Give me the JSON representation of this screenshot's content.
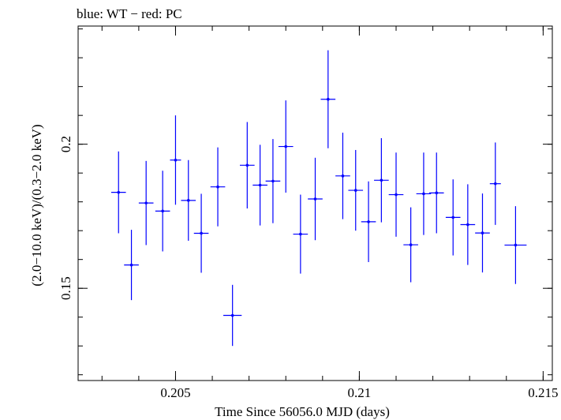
{
  "chart_data": {
    "type": "scatter",
    "title": "blue: WT − red: PC",
    "xlabel": "Time Since 56056.0 MJD (days)",
    "ylabel": "(2.0−10.0 keV)/(0.3−2.0 keV)",
    "xlim": [
      0.20235,
      0.21525
    ],
    "ylim": [
      0.118,
      0.241
    ],
    "xticks": [
      {
        "value": 0.205,
        "label": "0.205"
      },
      {
        "value": 0.21,
        "label": "0.21"
      },
      {
        "value": 0.215,
        "label": "0.215"
      }
    ],
    "yticks": [
      {
        "value": 0.15,
        "label": "0.15"
      },
      {
        "value": 0.2,
        "label": "0.2"
      }
    ],
    "x_minor_step": 0.001,
    "y_minor_step": 0.01,
    "grid": false,
    "series": [
      {
        "name": "WT",
        "color": "#0000ff",
        "points": [
          {
            "x": 0.20345,
            "y": 0.1833,
            "xerr": 0.0002,
            "yerr_lo": 0.0142,
            "yerr_hi": 0.0142
          },
          {
            "x": 0.2038,
            "y": 0.1581,
            "xerr": 0.0002,
            "yerr_lo": 0.0122,
            "yerr_hi": 0.0122
          },
          {
            "x": 0.2042,
            "y": 0.1796,
            "xerr": 0.0002,
            "yerr_lo": 0.0146,
            "yerr_hi": 0.0146
          },
          {
            "x": 0.20465,
            "y": 0.1768,
            "xerr": 0.0002,
            "yerr_lo": 0.014,
            "yerr_hi": 0.014
          },
          {
            "x": 0.205,
            "y": 0.1945,
            "xerr": 0.00015,
            "yerr_lo": 0.0155,
            "yerr_hi": 0.0155
          },
          {
            "x": 0.20535,
            "y": 0.1805,
            "xerr": 0.0002,
            "yerr_lo": 0.014,
            "yerr_hi": 0.014
          },
          {
            "x": 0.2057,
            "y": 0.1691,
            "xerr": 0.0002,
            "yerr_lo": 0.0137,
            "yerr_hi": 0.0137
          },
          {
            "x": 0.20615,
            "y": 0.1852,
            "xerr": 0.0002,
            "yerr_lo": 0.0137,
            "yerr_hi": 0.0137
          },
          {
            "x": 0.20655,
            "y": 0.1406,
            "xerr": 0.00025,
            "yerr_lo": 0.0106,
            "yerr_hi": 0.0106
          },
          {
            "x": 0.20695,
            "y": 0.1927,
            "xerr": 0.0002,
            "yerr_lo": 0.015,
            "yerr_hi": 0.015
          },
          {
            "x": 0.2073,
            "y": 0.1858,
            "xerr": 0.0002,
            "yerr_lo": 0.014,
            "yerr_hi": 0.014
          },
          {
            "x": 0.20765,
            "y": 0.1872,
            "xerr": 0.0002,
            "yerr_lo": 0.0146,
            "yerr_hi": 0.0146
          },
          {
            "x": 0.208,
            "y": 0.1992,
            "xerr": 0.0002,
            "yerr_lo": 0.016,
            "yerr_hi": 0.016
          },
          {
            "x": 0.2084,
            "y": 0.1688,
            "xerr": 0.0002,
            "yerr_lo": 0.0137,
            "yerr_hi": 0.0137
          },
          {
            "x": 0.2088,
            "y": 0.181,
            "xerr": 0.0002,
            "yerr_lo": 0.0143,
            "yerr_hi": 0.0143
          },
          {
            "x": 0.20915,
            "y": 0.2156,
            "xerr": 0.0002,
            "yerr_lo": 0.017,
            "yerr_hi": 0.017
          },
          {
            "x": 0.20955,
            "y": 0.189,
            "xerr": 0.0002,
            "yerr_lo": 0.015,
            "yerr_hi": 0.015
          },
          {
            "x": 0.2099,
            "y": 0.184,
            "xerr": 0.0002,
            "yerr_lo": 0.014,
            "yerr_hi": 0.014
          },
          {
            "x": 0.21025,
            "y": 0.1731,
            "xerr": 0.0002,
            "yerr_lo": 0.014,
            "yerr_hi": 0.014
          },
          {
            "x": 0.2106,
            "y": 0.1875,
            "xerr": 0.0002,
            "yerr_lo": 0.0146,
            "yerr_hi": 0.0146
          },
          {
            "x": 0.211,
            "y": 0.1825,
            "xerr": 0.0002,
            "yerr_lo": 0.0146,
            "yerr_hi": 0.0146
          },
          {
            "x": 0.2114,
            "y": 0.1651,
            "xerr": 0.0002,
            "yerr_lo": 0.013,
            "yerr_hi": 0.013
          },
          {
            "x": 0.21175,
            "y": 0.1828,
            "xerr": 0.0002,
            "yerr_lo": 0.0143,
            "yerr_hi": 0.0143
          },
          {
            "x": 0.2121,
            "y": 0.1831,
            "xerr": 0.0002,
            "yerr_lo": 0.014,
            "yerr_hi": 0.014
          },
          {
            "x": 0.21255,
            "y": 0.1746,
            "xerr": 0.0002,
            "yerr_lo": 0.0132,
            "yerr_hi": 0.0132
          },
          {
            "x": 0.21295,
            "y": 0.1721,
            "xerr": 0.0002,
            "yerr_lo": 0.014,
            "yerr_hi": 0.014
          },
          {
            "x": 0.21335,
            "y": 0.1692,
            "xerr": 0.0002,
            "yerr_lo": 0.0137,
            "yerr_hi": 0.0137
          },
          {
            "x": 0.2137,
            "y": 0.1863,
            "xerr": 0.00015,
            "yerr_lo": 0.0143,
            "yerr_hi": 0.0143
          },
          {
            "x": 0.21425,
            "y": 0.165,
            "xerr": 0.0003,
            "yerr_lo": 0.0135,
            "yerr_hi": 0.0135
          }
        ]
      }
    ]
  }
}
